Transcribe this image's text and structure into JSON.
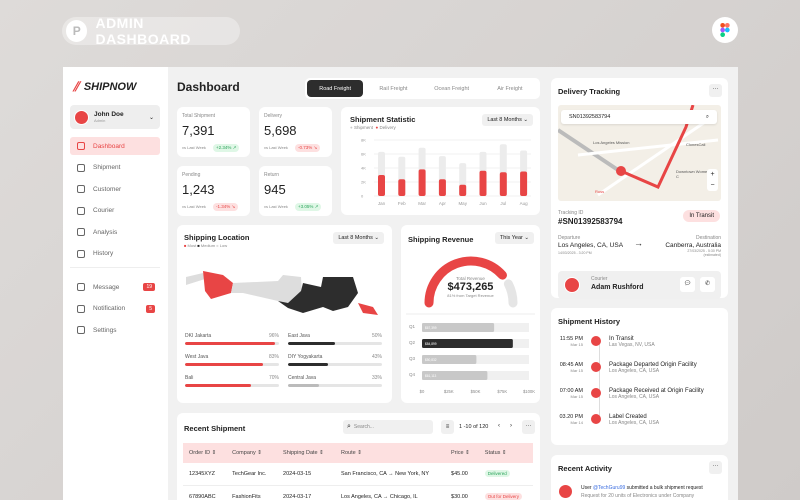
{
  "header": {
    "title": "ADMIN DASHBOARD",
    "logo": "P"
  },
  "sidebar": {
    "brand": "SHIPNOW",
    "user": {
      "name": "John Doe",
      "role": "Admin"
    },
    "items": [
      {
        "label": "Dashboard",
        "icon": "grid-icon",
        "active": true
      },
      {
        "label": "Shipment",
        "icon": "truck-icon"
      },
      {
        "label": "Customer",
        "icon": "users-icon"
      },
      {
        "label": "Courier",
        "icon": "id-card-icon"
      },
      {
        "label": "Analysis",
        "icon": "chart-icon"
      },
      {
        "label": "History",
        "icon": "clock-icon"
      }
    ],
    "items2": [
      {
        "label": "Message",
        "badge": "19",
        "icon": "message-icon"
      },
      {
        "label": "Notification",
        "badge": "5",
        "icon": "bell-icon"
      },
      {
        "label": "Settings",
        "icon": "gear-icon"
      }
    ]
  },
  "page": {
    "title": "Dashboard"
  },
  "freight_tabs": [
    "Road Freight",
    "Rail Freight",
    "Ocean Freight",
    "Air Freight"
  ],
  "stats": [
    {
      "label": "Total Shipment",
      "value": "7,391",
      "cmp": "vs Last Week",
      "chg": "+2.34%",
      "dir": "up"
    },
    {
      "label": "Delivery",
      "value": "5,698",
      "cmp": "vs Last Week",
      "chg": "-0.73%",
      "dir": "dn"
    },
    {
      "label": "Pending",
      "value": "1,243",
      "cmp": "vs Last Week",
      "chg": "-1.34%",
      "dir": "dn"
    },
    {
      "label": "Return",
      "value": "945",
      "cmp": "vs Last Week",
      "chg": "+3.05%",
      "dir": "up"
    }
  ],
  "chart_data": [
    {
      "type": "bar",
      "title": "Shipment Statistic",
      "filter": "Last 8 Months",
      "categories": [
        "Jan",
        "Feb",
        "Mar",
        "Apr",
        "May",
        "Jun",
        "Jul",
        "Aug"
      ],
      "yticks": [
        "0",
        "2K",
        "4K",
        "6K",
        "8K"
      ],
      "ylim": [
        0,
        8000
      ],
      "series": [
        {
          "name": "Shipment",
          "color": "#ececec",
          "values": [
            6300,
            5600,
            6900,
            5700,
            4700,
            6300,
            7400,
            6500
          ]
        },
        {
          "name": "Delivery",
          "color": "#e84545",
          "values": [
            3000,
            2400,
            3800,
            2400,
            1600,
            3600,
            3400,
            3500
          ]
        }
      ]
    },
    {
      "type": "bar",
      "orientation": "horizontal",
      "categories": [
        "Q1",
        "Q2",
        "Q3",
        "Q4"
      ],
      "values": [
        67399,
        84899,
        50832,
        61113
      ],
      "labels": [
        "$67,399",
        "$84,899",
        "$50,832",
        "$61,113"
      ],
      "xticks": [
        "$0",
        "$25K",
        "$50K",
        "$75K",
        "$100K"
      ],
      "xlim": [
        0,
        100000
      ]
    }
  ],
  "location": {
    "title": "Shipping Location",
    "filter": "Last 8 Months",
    "legend": [
      "Most",
      "Medium",
      "Low"
    ],
    "rows": [
      {
        "name": "DKI Jakarta",
        "pct": 96,
        "color": "#e84545"
      },
      {
        "name": "East Java",
        "pct": 50,
        "color": "#2d2d2d"
      },
      {
        "name": "West Java",
        "pct": 83,
        "color": "#e84545"
      },
      {
        "name": "DIY Yogyakarta",
        "pct": 43,
        "color": "#2d2d2d"
      },
      {
        "name": "Bali",
        "pct": 70,
        "color": "#e84545"
      },
      {
        "name": "Central Java",
        "pct": 33,
        "color": "#bbbbbb"
      }
    ]
  },
  "revenue": {
    "title": "Shipping Revenue",
    "filter": "This Year",
    "label": "Total Revenue",
    "value": "$473,265",
    "sub": "81% from Target Revenue",
    "pct": 81
  },
  "shipments": {
    "title": "Recent Shipment",
    "search_placeholder": "Search...",
    "pagination": "1 -10 of 120",
    "columns": [
      "Order ID",
      "Company",
      "Shipping Date",
      "Route",
      "Price",
      "Status"
    ],
    "rows": [
      [
        "12345XYZ",
        "TechGear Inc.",
        "2024-03-15",
        "San Francisco, CA → New York, NY",
        "$45.00",
        "Delivered"
      ],
      [
        "67890ABC",
        "FashionFits",
        "2024-03-17",
        "Los Angeles, CA → Chicago, IL",
        "$30.00",
        "Out for Delivery"
      ]
    ]
  },
  "tracking": {
    "title": "Delivery Tracking",
    "search": "SN01392583794",
    "map_labels": [
      "Los Angeles Mission",
      "ClonesCali",
      "Downtown Women's C",
      "Russ"
    ],
    "id_label": "Tracking ID",
    "id": "#SN01392583794",
    "status": "In Transit",
    "dep_label": "Departure",
    "dep": "Los Angeles, CA, USA",
    "dep_time": "14/03/2025 - 3:20 PM",
    "dst_label": "Destination",
    "dst": "Canberra, Australia",
    "dst_time": "27/03/2025 - 5:30 PM",
    "dst_note": "(estimated)",
    "courier_label": "Courier",
    "courier": "Adam Rushford"
  },
  "history": {
    "title": "Shipment History",
    "items": [
      {
        "time": "11:55 PM",
        "date": "Mar 15",
        "title": "In Transit",
        "loc": "Las Vegas, NV, USA"
      },
      {
        "time": "08:45 AM",
        "date": "Mar 15",
        "title": "Package Departed Origin Facility",
        "loc": "Los Angeles, CA, USA"
      },
      {
        "time": "07:00 AM",
        "date": "Mar 15",
        "title": "Package Received at Origin Facility",
        "loc": "Los Angeles, CA, USA"
      },
      {
        "time": "03.20 PM",
        "date": "Mar 14",
        "title": "Label Created",
        "loc": "Los Angeles, CA, USA"
      }
    ]
  },
  "activity": {
    "title": "Recent Activity",
    "pre": "User ",
    "user": "@TechGuru99",
    "post": " submitted a bulk shipment request",
    "detail": "Request for 20 units of Electronics under Company"
  }
}
